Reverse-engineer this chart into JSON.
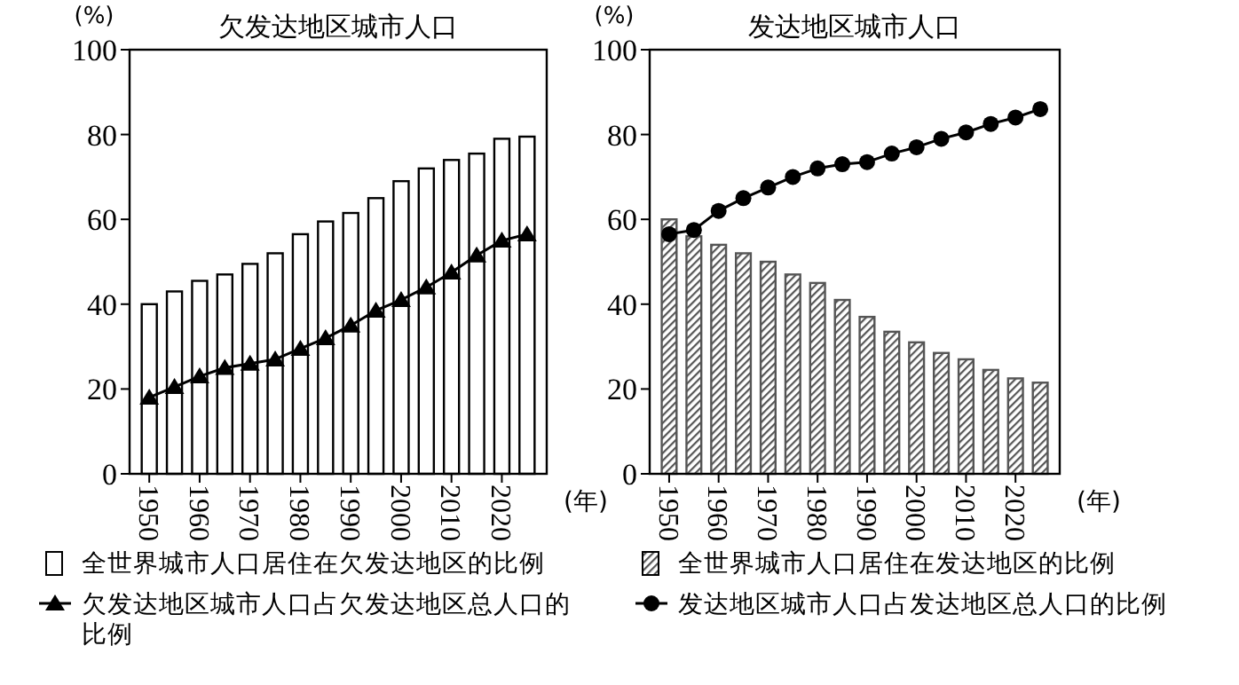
{
  "chart_data": [
    {
      "type": "bar",
      "title": "欠发达地区城市人口",
      "ylabel": "(%)",
      "xlabel": "(年)",
      "categories": [
        "1950",
        null,
        "1960",
        null,
        "1970",
        null,
        "1980",
        null,
        "1990",
        null,
        "2000",
        null,
        "2010",
        null,
        "2020",
        null
      ],
      "ylim": [
        0,
        100
      ],
      "yticks": [
        0,
        20,
        40,
        60,
        80,
        100
      ],
      "grid": false,
      "legend": "bottom",
      "series": [
        {
          "name": "全世界城市人口居住在欠发达地区的比例",
          "color": "#ffffff",
          "values": [
            40,
            43,
            45.5,
            47,
            49.5,
            52,
            56.5,
            59.5,
            61.5,
            65,
            69,
            72,
            74,
            75.5,
            79,
            79.5
          ]
        },
        {
          "name": "欠发达地区城市人口占欠发达地区总人口的比例",
          "type": "line",
          "color": "#000000",
          "marker": "triangle",
          "values": [
            18,
            20.5,
            23,
            25,
            26,
            27,
            29.5,
            32,
            35,
            38.5,
            41,
            44,
            47.5,
            51.5,
            55,
            56.5
          ]
        }
      ]
    },
    {
      "type": "bar",
      "title": "发达地区城市人口",
      "ylabel": "(%)",
      "xlabel": "(年)",
      "categories": [
        "1950",
        null,
        "1960",
        null,
        "1970",
        null,
        "1980",
        null,
        "1990",
        null,
        "2000",
        null,
        "2010",
        null,
        "2020",
        null
      ],
      "ylim": [
        0,
        100
      ],
      "yticks": [
        0,
        20,
        40,
        60,
        80,
        100
      ],
      "grid": false,
      "legend": "bottom",
      "series": [
        {
          "name": "全世界城市人口居住在发达地区的比例",
          "color": "#555555",
          "values": [
            60,
            56,
            54,
            52,
            50,
            47,
            45,
            41,
            37,
            33.5,
            31,
            28.5,
            27,
            24.5,
            22.5,
            21.5
          ]
        },
        {
          "name": "发达地区城市人口占发达地区总人口的比例",
          "type": "line",
          "color": "#000000",
          "marker": "circle",
          "values": [
            56.5,
            57.5,
            62,
            65,
            67.5,
            70,
            72,
            73,
            73.5,
            75.5,
            77,
            79,
            80.5,
            82.5,
            84,
            86
          ]
        }
      ]
    }
  ]
}
